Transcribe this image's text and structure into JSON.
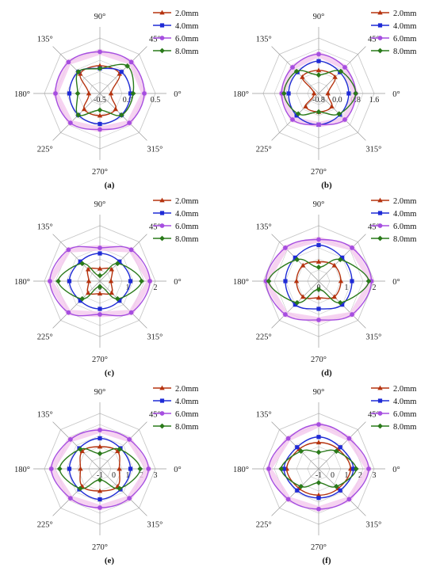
{
  "figure": {
    "legend_entries": [
      "2.0mm",
      "4.0mm",
      "6.0mm",
      "8.0mm"
    ],
    "series_colors": {
      "2.0mm": "#b5330f",
      "4.0mm": "#1f2bd6",
      "6.0mm": "#a64ee0",
      "8.0mm": "#2a7a1a"
    },
    "grid_color": "#c8c8c8",
    "axis_color": "#9a9a9a",
    "band_color": "#f4c8ee",
    "markers": {
      "2.0mm": "triangle",
      "4.0mm": "square",
      "6.0mm": "circle",
      "8.0mm": "diamond"
    }
  },
  "chart_data": [
    {
      "type": "radar",
      "panel_label": "(a)",
      "angle_labels": [
        "0°",
        "45°",
        "90°",
        "135°",
        "180°",
        "225°",
        "270°",
        "315°"
      ],
      "angles_deg": [
        0,
        45,
        90,
        135,
        180,
        225,
        270,
        315
      ],
      "radial_ticks": [
        "-0.5",
        "0.0",
        "0.5"
      ],
      "rlim": [
        -0.5,
        0.5
      ],
      "legend_placement": "top-right",
      "series": [
        {
          "name": "2.0mm",
          "values": [
            -0.3,
            0.0,
            0.0,
            0.0,
            -0.3,
            -0.1,
            -0.1,
            -0.1
          ]
        },
        {
          "name": "4.0mm",
          "values": [
            0.05,
            0.05,
            -0.05,
            0.05,
            0.05,
            0.05,
            0.05,
            0.05
          ]
        },
        {
          "name": "6.0mm",
          "values": [
            0.3,
            0.3,
            0.25,
            0.3,
            0.3,
            0.25,
            0.15,
            0.25
          ]
        },
        {
          "name": "8.0mm",
          "values": [
            0.1,
            0.2,
            -0.05,
            0.05,
            -0.1,
            0.05,
            -0.2,
            0.05
          ]
        }
      ]
    },
    {
      "type": "radar",
      "panel_label": "(b)",
      "angle_labels": [
        "0°",
        "45°",
        "90°",
        "135°",
        "180°",
        "225°",
        "270°",
        "315°"
      ],
      "angles_deg": [
        0,
        45,
        90,
        135,
        180,
        225,
        270,
        315
      ],
      "radial_ticks": [
        "-0.8",
        "0.0",
        "0.8",
        "1.6"
      ],
      "rlim": [
        -0.8,
        1.6
      ],
      "legend_placement": "top-right",
      "series": [
        {
          "name": "2.0mm",
          "values": [
            -0.4,
            0.2,
            0.2,
            0.2,
            -0.6,
            0.0,
            0.0,
            0.0
          ]
        },
        {
          "name": "4.0mm",
          "values": [
            0.5,
            0.5,
            0.6,
            0.5,
            0.5,
            0.55,
            0.55,
            0.5
          ]
        },
        {
          "name": "6.0mm",
          "values": [
            0.8,
            0.8,
            0.9,
            0.8,
            0.8,
            0.8,
            0.55,
            0.8
          ]
        },
        {
          "name": "8.0mm",
          "values": [
            0.8,
            0.55,
            0.0,
            0.55,
            0.7,
            0.45,
            0.0,
            0.45
          ]
        }
      ]
    },
    {
      "type": "radar",
      "panel_label": "(c)",
      "angle_labels": [
        "0°",
        "45°",
        "90°",
        "135°",
        "180°",
        "225°",
        "270°",
        "315°"
      ],
      "angles_deg": [
        0,
        45,
        90,
        135,
        180,
        225,
        270,
        315
      ],
      "radial_ticks": [
        "0",
        "1",
        "2"
      ],
      "rlim": [
        0,
        2
      ],
      "legend_placement": "top-right",
      "series": [
        {
          "name": "2.0mm",
          "values": [
            0.4,
            0.6,
            0.45,
            0.6,
            0.4,
            0.6,
            0.45,
            0.6
          ]
        },
        {
          "name": "4.0mm",
          "values": [
            1.1,
            1.0,
            1.0,
            1.0,
            1.1,
            1.0,
            1.0,
            1.0
          ]
        },
        {
          "name": "6.0mm",
          "values": [
            1.8,
            1.6,
            1.2,
            1.6,
            1.8,
            1.6,
            1.2,
            1.6
          ]
        },
        {
          "name": "8.0mm",
          "values": [
            1.5,
            0.9,
            0.2,
            0.9,
            1.5,
            0.9,
            0.2,
            0.9
          ]
        }
      ]
    },
    {
      "type": "radar",
      "panel_label": "(d)",
      "angle_labels": [
        "0°",
        "45°",
        "90°",
        "135°",
        "180°",
        "225°",
        "270°",
        "315°"
      ],
      "angles_deg": [
        0,
        45,
        90,
        135,
        180,
        225,
        270,
        315
      ],
      "radial_ticks": [
        "0",
        "1",
        "2"
      ],
      "rlim": [
        0,
        2
      ],
      "legend_placement": "top-right",
      "series": [
        {
          "name": "2.0mm",
          "values": [
            0.8,
            0.8,
            0.7,
            0.8,
            0.8,
            0.8,
            0.6,
            0.8
          ]
        },
        {
          "name": "4.0mm",
          "values": [
            1.2,
            1.2,
            1.3,
            1.2,
            1.2,
            1.2,
            1.0,
            1.2
          ]
        },
        {
          "name": "6.0mm",
          "values": [
            1.9,
            1.7,
            1.5,
            1.7,
            1.9,
            1.7,
            1.4,
            1.7
          ]
        },
        {
          "name": "8.0mm",
          "values": [
            1.8,
            1.1,
            0.5,
            1.1,
            1.8,
            1.1,
            0.3,
            1.1
          ]
        }
      ]
    },
    {
      "type": "radar",
      "panel_label": "(e)",
      "angle_labels": [
        "0°",
        "45°",
        "90°",
        "135°",
        "180°",
        "225°",
        "270°",
        "315°"
      ],
      "angles_deg": [
        0,
        45,
        90,
        135,
        180,
        225,
        270,
        315
      ],
      "radial_ticks": [
        "-1",
        "0",
        "1",
        "2",
        "3"
      ],
      "rlim": [
        -1,
        3
      ],
      "legend_placement": "top-right",
      "series": [
        {
          "name": "2.0mm",
          "values": [
            0.4,
            0.8,
            0.6,
            0.8,
            0.4,
            0.8,
            0.6,
            0.8
          ]
        },
        {
          "name": "4.0mm",
          "values": [
            1.2,
            1.1,
            1.2,
            1.1,
            1.2,
            1.1,
            1.2,
            1.1
          ]
        },
        {
          "name": "6.0mm",
          "values": [
            2.5,
            2.0,
            1.8,
            2.0,
            2.5,
            2.0,
            1.8,
            2.0
          ]
        },
        {
          "name": "8.0mm",
          "values": [
            1.9,
            1.0,
            0.1,
            1.0,
            1.9,
            1.0,
            -0.2,
            1.0
          ]
        }
      ]
    },
    {
      "type": "radar",
      "panel_label": "(f)",
      "angle_labels": [
        "0°",
        "45°",
        "90°",
        "135°",
        "180°",
        "225°",
        "270°",
        "315°"
      ],
      "angles_deg": [
        0,
        45,
        90,
        135,
        180,
        225,
        270,
        315
      ],
      "radial_ticks": [
        "-1",
        "0",
        "1",
        "2",
        "3"
      ],
      "rlim": [
        -1,
        3
      ],
      "legend_placement": "top-right",
      "series": [
        {
          "name": "2.0mm",
          "values": [
            1.3,
            1.0,
            0.9,
            1.0,
            1.3,
            1.0,
            0.9,
            1.0
          ]
        },
        {
          "name": "4.0mm",
          "values": [
            1.5,
            1.2,
            1.3,
            1.2,
            1.5,
            1.2,
            1.1,
            1.2
          ]
        },
        {
          "name": "6.0mm",
          "values": [
            2.6,
            2.1,
            2.2,
            2.1,
            2.6,
            2.1,
            1.9,
            2.1
          ]
        },
        {
          "name": "8.0mm",
          "values": [
            1.7,
            0.8,
            0.2,
            0.8,
            1.7,
            0.8,
            0.0,
            0.8
          ]
        }
      ]
    }
  ]
}
